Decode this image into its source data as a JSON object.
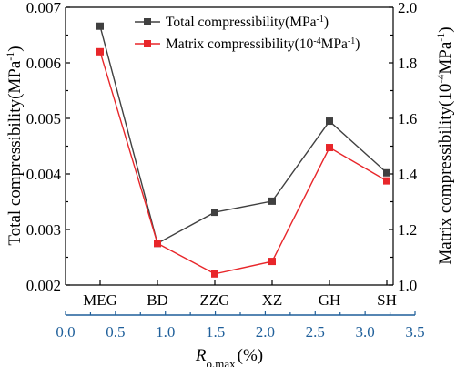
{
  "chart_data": {
    "type": "line",
    "categories": [
      "MEG",
      "BD",
      "ZZG",
      "XZ",
      "GH",
      "SH"
    ],
    "series": [
      {
        "name": "Total compressibility",
        "name_unit_prefix": "(MPa",
        "name_unit_sup": "-1",
        "name_unit_suffix": ")",
        "axis": "left",
        "color": "#404040",
        "values": [
          0.00666,
          0.00275,
          0.00331,
          0.00351,
          0.00495,
          0.00402
        ]
      },
      {
        "name": "Matrix compressibility",
        "name_unit_prefix": "(10",
        "name_unit_sup": "-4",
        "name_unit_suffix": "MPa",
        "name_unit_sup2": "-1",
        "name_unit_end": ")",
        "axis": "right",
        "color": "#e8262a",
        "values": [
          1.84,
          1.15,
          1.04,
          1.085,
          1.495,
          1.375
        ]
      }
    ],
    "left_axis": {
      "label": "Total compressibility(MPa",
      "label_sup": "-1",
      "label_end": ")",
      "ylim": [
        0.002,
        0.007
      ],
      "ticks": [
        "0.002",
        "0.003",
        "0.004",
        "0.005",
        "0.006",
        "0.007"
      ]
    },
    "right_axis": {
      "label": "Matrix compressibility(10",
      "label_sup": "-4",
      "label_mid": "MPa",
      "label_sup2": "-1",
      "label_end": ")",
      "ylim": [
        1.0,
        2.0
      ],
      "ticks": [
        "1.0",
        "1.2",
        "1.4",
        "1.6",
        "1.8",
        "2.0"
      ]
    },
    "bottom_axis": {
      "label_main": "R",
      "label_sub": "o,max",
      "label_unit": "(%)",
      "xlim": [
        0.0,
        3.5
      ],
      "ticks": [
        "0.0",
        "0.5",
        "1.0",
        "1.5",
        "2.0",
        "2.5",
        "3.0",
        "3.5"
      ],
      "color": "#1f5f9a"
    },
    "grid": false,
    "legend_position": "top-right"
  }
}
